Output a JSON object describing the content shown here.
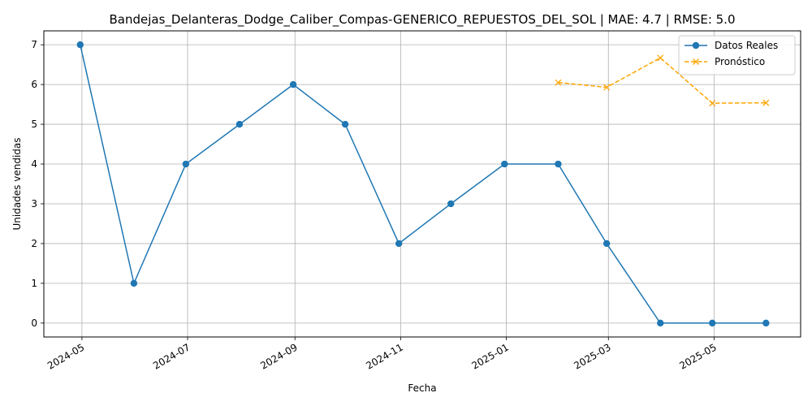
{
  "chart_data": {
    "type": "line",
    "title": "Bandejas_Delanteras_Dodge_Caliber_Compas-GENERICO_REPUESTOS_DEL_SOL | MAE: 4.7 | RMSE: 5.0",
    "xlabel": "Fecha",
    "ylabel": "Unidades vendidas",
    "ylim": [
      -0.35,
      7.35
    ],
    "xlim": [
      "2024-04-09",
      "2025-06-20"
    ],
    "x_ticks": [
      "2024-05",
      "2024-07",
      "2024-09",
      "2024-11",
      "2025-01",
      "2025-03",
      "2025-05"
    ],
    "x_tick_dates": [
      "2024-05-01",
      "2024-07-01",
      "2024-09-01",
      "2024-11-01",
      "2025-01-01",
      "2025-03-01",
      "2025-05-01"
    ],
    "y_ticks": [
      0,
      1,
      2,
      3,
      4,
      5,
      6,
      7
    ],
    "grid": true,
    "legend_position": "top-right",
    "series": [
      {
        "name": "Datos Reales",
        "color": "#1f77b4",
        "line_style": "solid",
        "marker": "circle",
        "x": [
          "2024-04-30",
          "2024-05-31",
          "2024-06-30",
          "2024-07-31",
          "2024-08-31",
          "2024-09-30",
          "2024-10-31",
          "2024-11-30",
          "2024-12-31",
          "2025-01-31",
          "2025-02-28",
          "2025-03-31",
          "2025-04-30",
          "2025-05-31"
        ],
        "values": [
          7,
          1,
          4,
          5,
          6,
          5,
          2,
          3,
          4,
          4,
          2,
          0,
          0,
          0
        ]
      },
      {
        "name": "Pronóstico",
        "color": "#ffa500",
        "line_style": "dashed",
        "marker": "x",
        "x": [
          "2025-01-31",
          "2025-02-28",
          "2025-03-31",
          "2025-04-30",
          "2025-05-31"
        ],
        "values": [
          6.05,
          5.93,
          6.67,
          5.53,
          5.54
        ]
      }
    ]
  }
}
